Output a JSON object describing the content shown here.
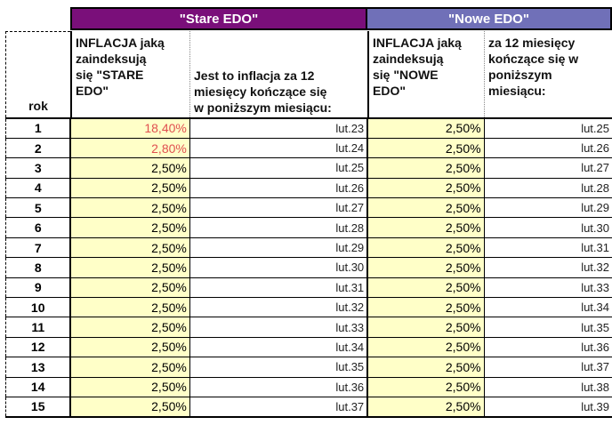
{
  "bands": {
    "stare": "\"Stare EDO\"",
    "nowe": "\"Nowe EDO\""
  },
  "headers": {
    "rok": "rok",
    "stare_inflacja": [
      "INFLACJA jaką",
      "zaindeksują",
      "się \"STARE",
      "EDO\""
    ],
    "stare_okres": [
      "Jest to inflacja za 12",
      "miesięcy kończące się",
      "w poniższym miesiącu:"
    ],
    "nowe_inflacja": [
      "INFLACJA jaką",
      "zaindeksują",
      "się \"NOWE",
      "EDO\""
    ],
    "nowe_okres": [
      "za 12 miesięcy",
      "kończące się w",
      "poniższym",
      "miesiącu:"
    ]
  },
  "colors": {
    "stare_band": "#7a0f7a",
    "nowe_band": "#7070b8",
    "highlight_red": "#e05050",
    "cell_yellow": "#ffffc8"
  },
  "rows": [
    {
      "rok": "1",
      "stare_inflacja": "18,40%",
      "stare_okres": "lut.23",
      "nowe_inflacja": "2,50%",
      "nowe_okres": "lut.25",
      "highlight": true
    },
    {
      "rok": "2",
      "stare_inflacja": "2,80%",
      "stare_okres": "lut.24",
      "nowe_inflacja": "2,50%",
      "nowe_okres": "lut.26",
      "highlight": true
    },
    {
      "rok": "3",
      "stare_inflacja": "2,50%",
      "stare_okres": "lut.25",
      "nowe_inflacja": "2,50%",
      "nowe_okres": "lut.27",
      "highlight": false
    },
    {
      "rok": "4",
      "stare_inflacja": "2,50%",
      "stare_okres": "lut.26",
      "nowe_inflacja": "2,50%",
      "nowe_okres": "lut.28",
      "highlight": false
    },
    {
      "rok": "5",
      "stare_inflacja": "2,50%",
      "stare_okres": "lut.27",
      "nowe_inflacja": "2,50%",
      "nowe_okres": "lut.29",
      "highlight": false
    },
    {
      "rok": "6",
      "stare_inflacja": "2,50%",
      "stare_okres": "lut.28",
      "nowe_inflacja": "2,50%",
      "nowe_okres": "lut.30",
      "highlight": false
    },
    {
      "rok": "7",
      "stare_inflacja": "2,50%",
      "stare_okres": "lut.29",
      "nowe_inflacja": "2,50%",
      "nowe_okres": "lut.31",
      "highlight": false
    },
    {
      "rok": "8",
      "stare_inflacja": "2,50%",
      "stare_okres": "lut.30",
      "nowe_inflacja": "2,50%",
      "nowe_okres": "lut.32",
      "highlight": false
    },
    {
      "rok": "9",
      "stare_inflacja": "2,50%",
      "stare_okres": "lut.31",
      "nowe_inflacja": "2,50%",
      "nowe_okres": "lut.33",
      "highlight": false
    },
    {
      "rok": "10",
      "stare_inflacja": "2,50%",
      "stare_okres": "lut.32",
      "nowe_inflacja": "2,50%",
      "nowe_okres": "lut.34",
      "highlight": false
    },
    {
      "rok": "11",
      "stare_inflacja": "2,50%",
      "stare_okres": "lut.33",
      "nowe_inflacja": "2,50%",
      "nowe_okres": "lut.35",
      "highlight": false
    },
    {
      "rok": "12",
      "stare_inflacja": "2,50%",
      "stare_okres": "lut.34",
      "nowe_inflacja": "2,50%",
      "nowe_okres": "lut.36",
      "highlight": false
    },
    {
      "rok": "13",
      "stare_inflacja": "2,50%",
      "stare_okres": "lut.35",
      "nowe_inflacja": "2,50%",
      "nowe_okres": "lut.37",
      "highlight": false
    },
    {
      "rok": "14",
      "stare_inflacja": "2,50%",
      "stare_okres": "lut.36",
      "nowe_inflacja": "2,50%",
      "nowe_okres": "lut.38",
      "highlight": false
    },
    {
      "rok": "15",
      "stare_inflacja": "2,50%",
      "stare_okres": "lut.37",
      "nowe_inflacja": "2,50%",
      "nowe_okres": "lut.39",
      "highlight": false
    }
  ]
}
